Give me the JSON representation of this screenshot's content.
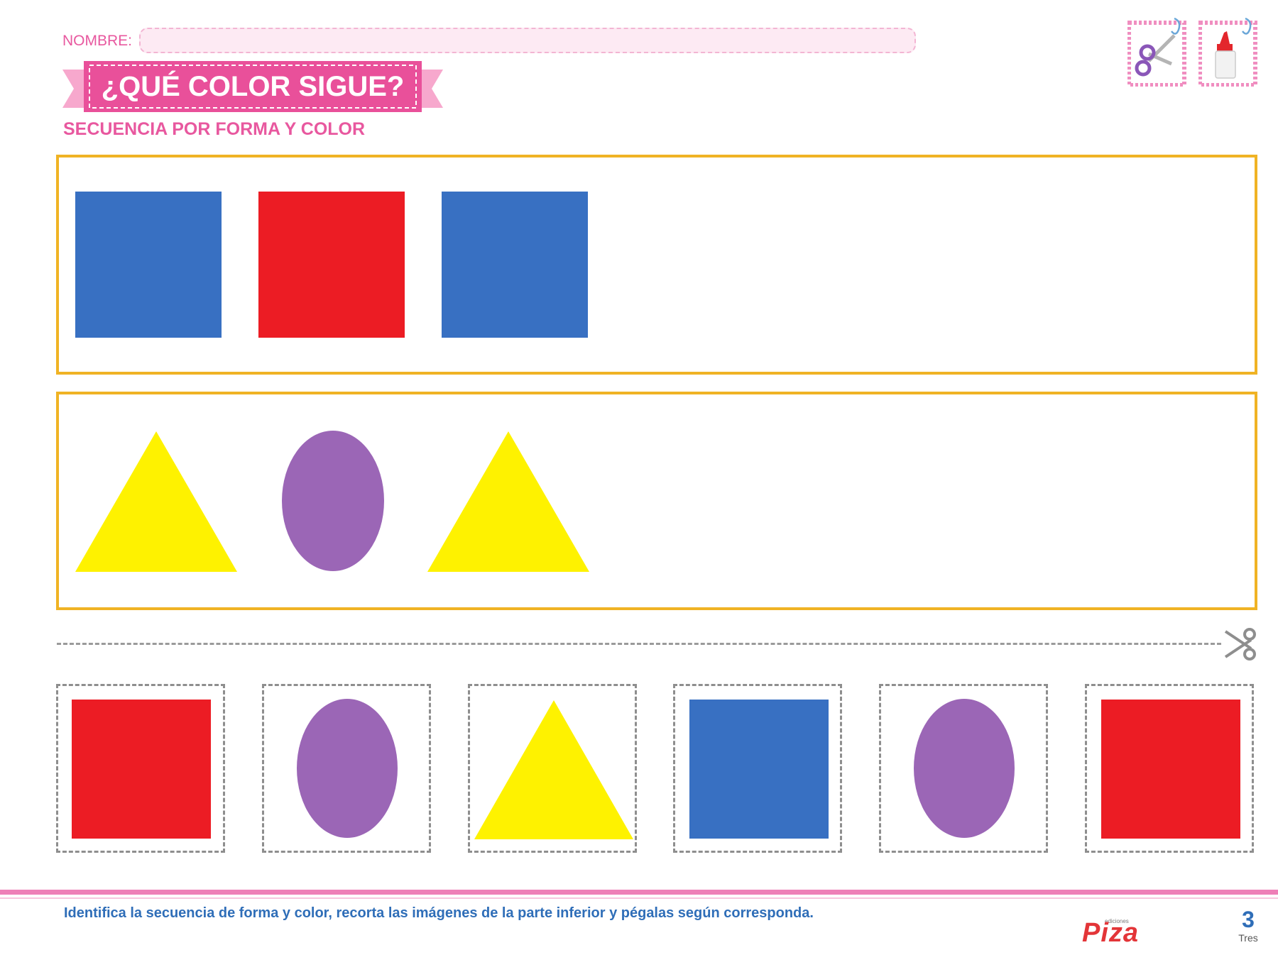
{
  "header": {
    "name_label": "NOMBRE:",
    "title": "¿QUÉ COLOR SIGUE?",
    "subtitle": "SECUENCIA POR FORMA Y COLOR",
    "tools": [
      "scissors-icon",
      "glue-icon"
    ]
  },
  "colors": {
    "pink": "#e8589f",
    "banner_pink": "#e9509a",
    "panel_border": "#f0b324",
    "blue": "#3870c2",
    "red": "#ec1c24",
    "yellow": "#fef200",
    "purple": "#9b66b6"
  },
  "sequences": [
    {
      "shapes": [
        {
          "shape": "square",
          "color": "blue"
        },
        {
          "shape": "square",
          "color": "red"
        },
        {
          "shape": "square",
          "color": "blue"
        }
      ]
    },
    {
      "shapes": [
        {
          "shape": "triangle",
          "color": "yellow"
        },
        {
          "shape": "oval",
          "color": "purple"
        },
        {
          "shape": "triangle",
          "color": "yellow"
        }
      ]
    }
  ],
  "cutouts": [
    {
      "shape": "square",
      "color": "red"
    },
    {
      "shape": "oval",
      "color": "purple"
    },
    {
      "shape": "triangle",
      "color": "yellow"
    },
    {
      "shape": "square",
      "color": "blue"
    },
    {
      "shape": "oval",
      "color": "purple"
    },
    {
      "shape": "square",
      "color": "red"
    }
  ],
  "footer": {
    "instruction": "Identifica la secuencia de forma y color, recorta las imágenes de la parte inferior y pégalas según corresponda.",
    "brand_small": "ediciones",
    "brand": "Piza",
    "page_number": "3",
    "page_word": "Tres"
  }
}
